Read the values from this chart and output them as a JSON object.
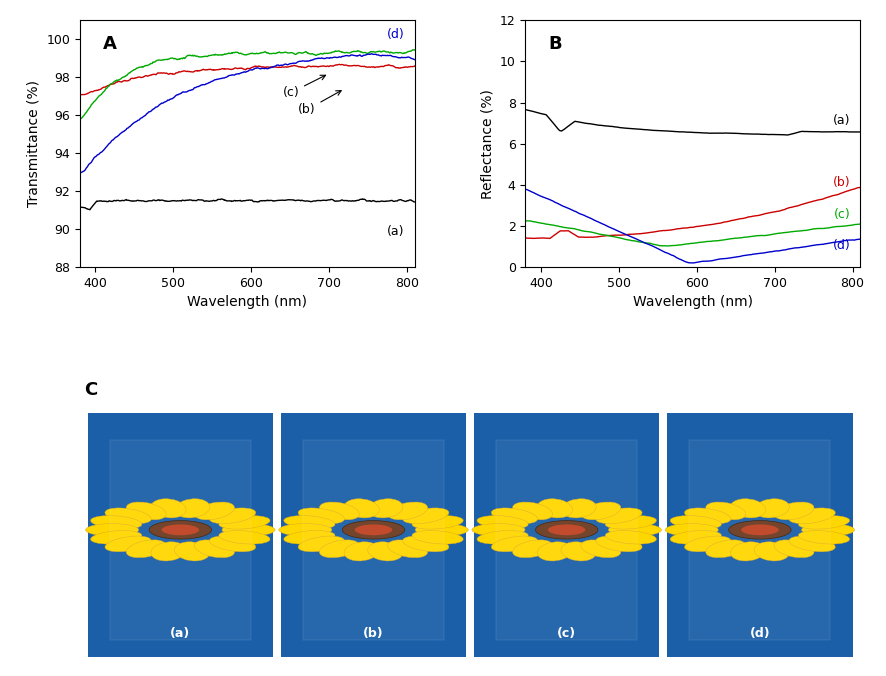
{
  "panel_A": {
    "title": "A",
    "xlabel": "Wavelength (nm)",
    "ylabel": "Transmittance (%)",
    "xlim": [
      380,
      810
    ],
    "ylim": [
      88,
      101
    ],
    "yticks": [
      88,
      90,
      92,
      94,
      96,
      98,
      100
    ],
    "xticks": [
      400,
      500,
      600,
      700,
      800
    ],
    "series": {
      "a": {
        "color": "#000000",
        "label": "(a)"
      },
      "b": {
        "color": "#cc0000",
        "label": "(b)"
      },
      "c": {
        "color": "#00aa00",
        "label": "(c)"
      },
      "d": {
        "color": "#0000cc",
        "label": "(d)"
      }
    }
  },
  "panel_B": {
    "title": "B",
    "xlabel": "Wavelength (nm)",
    "ylabel": "Reflectance (%)",
    "xlim": [
      380,
      810
    ],
    "ylim": [
      0,
      12
    ],
    "yticks": [
      0,
      2,
      4,
      6,
      8,
      10,
      12
    ],
    "xticks": [
      400,
      500,
      600,
      700,
      800
    ],
    "series": {
      "a": {
        "color": "#000000",
        "label": "(a)"
      },
      "b": {
        "color": "#cc0000",
        "label": "(b)"
      },
      "c": {
        "color": "#00aa00",
        "label": "(c)"
      },
      "d": {
        "color": "#0000cc",
        "label": "(d)"
      }
    }
  },
  "panel_C": {
    "title": "C",
    "labels": [
      "(a)",
      "(b)",
      "(c)",
      "(d)"
    ],
    "bg_color": "#1a5fa8",
    "sunflower_petal_color": "#FFD700",
    "sunflower_petal_edge": "#DAA520",
    "sunflower_center_color": "#6B3A1F",
    "sunflower_inner_color": "#C04020",
    "glass_edge_color": "#ffffff"
  }
}
